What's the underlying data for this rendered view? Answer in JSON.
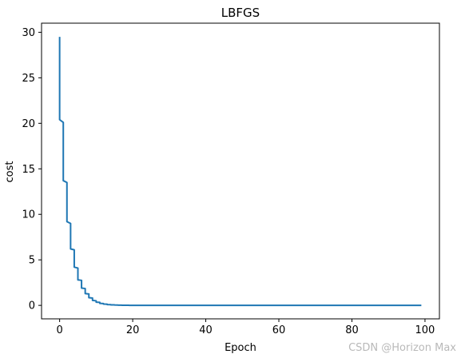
{
  "watermark": "CSDN @Horizon Max",
  "chart_data": {
    "type": "line",
    "title": "LBFGS",
    "xlabel": "Epoch",
    "ylabel": "cost",
    "xlim": [
      -4.95,
      103.95
    ],
    "ylim": [
      -1.48,
      31.0
    ],
    "xticks": [
      0,
      20,
      40,
      60,
      80,
      100
    ],
    "yticks": [
      0,
      5,
      10,
      15,
      20,
      25,
      30
    ],
    "grid": false,
    "legend": "none",
    "colors": {
      "line": "#1f77b4",
      "axes": "#000000",
      "background": "#ffffff"
    },
    "series": [
      {
        "x": [
          0,
          0,
          1,
          1,
          2,
          2,
          3,
          3,
          4,
          4,
          5,
          5,
          6,
          6,
          7,
          7,
          8,
          8,
          9,
          9,
          10,
          10,
          11,
          11,
          12,
          12,
          13,
          13,
          14,
          14,
          15,
          15,
          16,
          16,
          17,
          17,
          18,
          18,
          19,
          19,
          20,
          30,
          40,
          50,
          60,
          70,
          80,
          90,
          99
        ],
        "values": [
          29.5,
          20.4,
          20.1,
          13.7,
          13.5,
          9.2,
          9.0,
          6.2,
          6.1,
          4.2,
          4.1,
          2.8,
          2.75,
          1.9,
          1.85,
          1.3,
          1.25,
          0.85,
          0.8,
          0.55,
          0.5,
          0.35,
          0.33,
          0.22,
          0.2,
          0.14,
          0.13,
          0.09,
          0.08,
          0.06,
          0.055,
          0.04,
          0.035,
          0.025,
          0.022,
          0.015,
          0.013,
          0.01,
          0.008,
          0.006,
          0.005,
          0.001,
          0,
          0,
          0,
          0,
          0,
          0,
          0
        ]
      }
    ]
  }
}
